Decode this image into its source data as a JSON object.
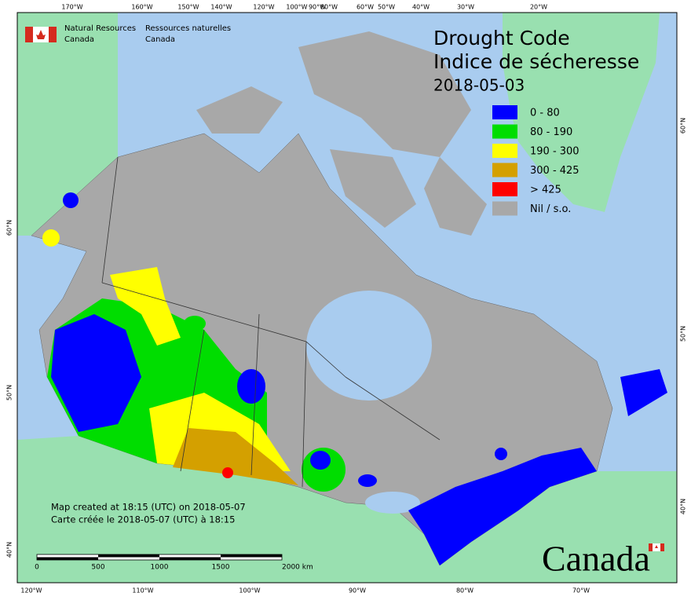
{
  "header": {
    "org_en_1": "Natural Resources",
    "org_en_2": "Canada",
    "org_fr_1": "Ressources naturelles",
    "org_fr_2": "Canada"
  },
  "title": {
    "line1": "Drought Code",
    "line2": "Indice de sécheresse",
    "date": "2018-05-03"
  },
  "legend": [
    {
      "label": "0 - 80",
      "color": "#0000ff"
    },
    {
      "label": "80 - 190",
      "color": "#00dd00"
    },
    {
      "label": "190 - 300",
      "color": "#ffff00"
    },
    {
      "label": "300 - 425",
      "color": "#d4a000"
    },
    {
      "label": "> 425",
      "color": "#ff0000"
    },
    {
      "label": "Nil / s.o.",
      "color": "#a8a8a8"
    }
  ],
  "graticule": {
    "top": [
      "170°W",
      "160°W",
      "150°W",
      "140°W",
      "120°W",
      "100°W",
      "90°W",
      "80°W",
      "60°W",
      "50°W",
      "40°W",
      "30°W",
      "20°W"
    ],
    "bottom": [
      "120°W",
      "110°W",
      "100°W",
      "90°W",
      "80°W",
      "70°W"
    ],
    "left": [
      "60°N",
      "50°N",
      "40°N"
    ],
    "right": [
      "60°N",
      "50°N",
      "40°N"
    ]
  },
  "notes": {
    "created_en": "Map created at 18:15 (UTC) on 2018-05-07",
    "created_fr": "Carte créée le 2018-05-07 (UTC) à 18:15"
  },
  "scale_bar": [
    "0",
    "500",
    "1000",
    "1500",
    "2000 km"
  ],
  "wordmark": "Canada"
}
